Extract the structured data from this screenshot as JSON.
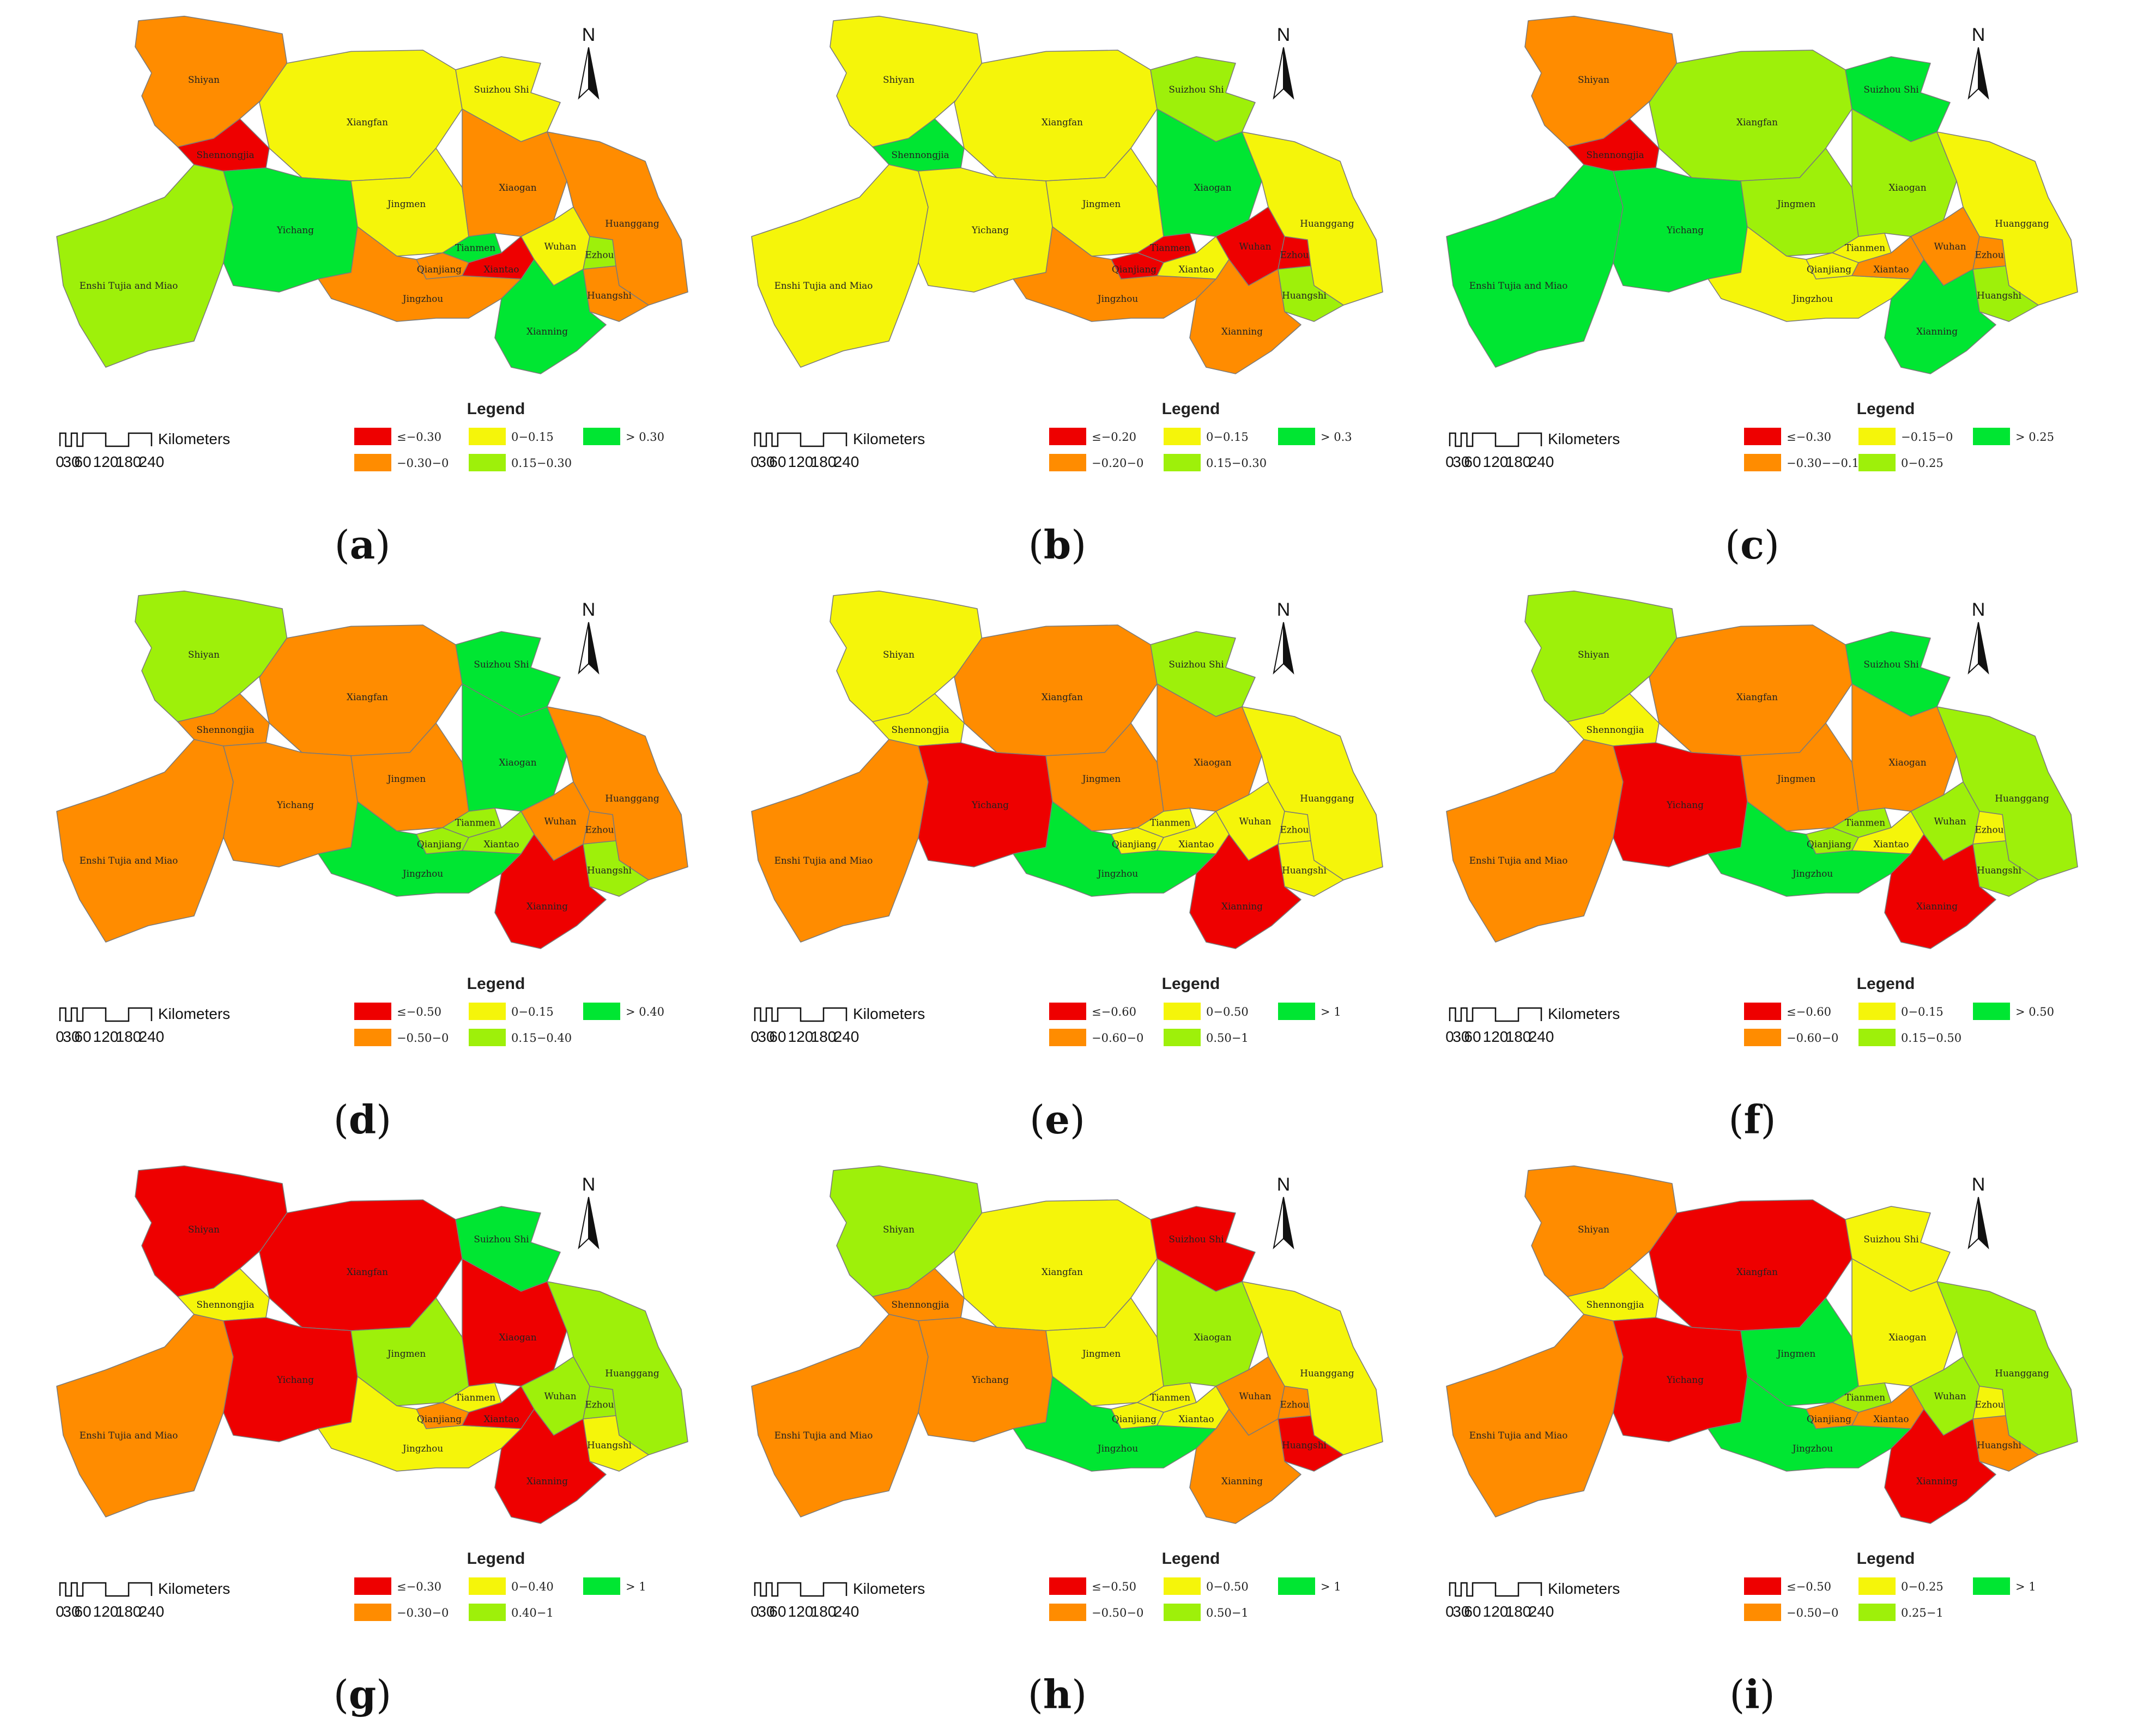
{
  "colors": {
    "red": "#ee0000",
    "orange": "#ff8c00",
    "yellow": "#f5f50a",
    "lime": "#9ef00a",
    "green": "#00e632",
    "border": "#7a7a7a"
  },
  "north_label": "N",
  "scalebar": {
    "unit_label": "Kilometers",
    "ticks": [
      "0",
      "30",
      "60",
      "120",
      "180",
      "240"
    ]
  },
  "legend_title": "Legend",
  "region_labels": {
    "shiyan": "Shiyan",
    "shennongjia": "Shennongjia",
    "xiangfan": "Xiangfan",
    "suizhou": "Suizhou Shi",
    "enshi": "Enshi Tujia and Miao",
    "yichang": "Yichang",
    "jingmen": "Jingmen",
    "xiaogan": "Xiaogan",
    "tianmen": "Tianmen",
    "qianjiang": "Qianjiang",
    "xiantao": "Xiantao",
    "wuhan": "Wuhan",
    "ezhou": "Ezhou",
    "huanggang": "Huanggang",
    "jingzhou": "Jingzhou",
    "huangshi": "Huangshi",
    "xianning": "Xianning"
  },
  "panels": [
    {
      "id": "a",
      "legend": {
        "red": "≤−0.30",
        "orange": "−0.30−0",
        "yellow": "0−0.15",
        "lime": "0.15−0.30",
        "green": "> 0.30"
      },
      "fills": {
        "shiyan": "orange",
        "shennongjia": "red",
        "xiangfan": "yellow",
        "suizhou": "yellow",
        "enshi": "lime",
        "yichang": "green",
        "jingmen": "yellow",
        "xiaogan": "orange",
        "tianmen": "green",
        "qianjiang": "orange",
        "xiantao": "red",
        "wuhan": "yellow",
        "ezhou": "lime",
        "huanggang": "orange",
        "jingzhou": "orange",
        "huangshi": "orange",
        "xianning": "green"
      }
    },
    {
      "id": "b",
      "legend": {
        "red": "≤−0.20",
        "orange": "−0.20−0",
        "yellow": "0−0.15",
        "lime": "0.15−0.30",
        "green": "> 0.3"
      },
      "fills": {
        "shiyan": "yellow",
        "shennongjia": "green",
        "xiangfan": "yellow",
        "suizhou": "lime",
        "enshi": "yellow",
        "yichang": "yellow",
        "jingmen": "yellow",
        "xiaogan": "green",
        "tianmen": "red",
        "qianjiang": "red",
        "xiantao": "yellow",
        "wuhan": "red",
        "ezhou": "red",
        "huanggang": "yellow",
        "jingzhou": "orange",
        "huangshi": "lime",
        "xianning": "orange"
      }
    },
    {
      "id": "c",
      "legend": {
        "red": "≤−0.30",
        "orange": "−0.30−−0.15",
        "yellow": "−0.15−0",
        "lime": "0−0.25",
        "green": "> 0.25"
      },
      "fills": {
        "shiyan": "orange",
        "shennongjia": "red",
        "xiangfan": "lime",
        "suizhou": "green",
        "enshi": "green",
        "yichang": "green",
        "jingmen": "lime",
        "xiaogan": "lime",
        "tianmen": "yellow",
        "qianjiang": "yellow",
        "xiantao": "orange",
        "wuhan": "orange",
        "ezhou": "orange",
        "huanggang": "yellow",
        "jingzhou": "yellow",
        "huangshi": "lime",
        "xianning": "green"
      }
    },
    {
      "id": "d",
      "legend": {
        "red": "≤−0.50",
        "orange": "−0.50−0",
        "yellow": "0−0.15",
        "lime": "0.15−0.40",
        "green": "> 0.40"
      },
      "fills": {
        "shiyan": "lime",
        "shennongjia": "orange",
        "xiangfan": "orange",
        "suizhou": "green",
        "enshi": "orange",
        "yichang": "orange",
        "jingmen": "orange",
        "xiaogan": "green",
        "tianmen": "lime",
        "qianjiang": "lime",
        "xiantao": "lime",
        "wuhan": "orange",
        "ezhou": "orange",
        "huanggang": "orange",
        "jingzhou": "green",
        "huangshi": "lime",
        "xianning": "red"
      }
    },
    {
      "id": "e",
      "legend": {
        "red": "≤−0.60",
        "orange": "−0.60−0",
        "yellow": "0−0.50",
        "lime": "0.50−1",
        "green": "> 1"
      },
      "fills": {
        "shiyan": "yellow",
        "shennongjia": "yellow",
        "xiangfan": "orange",
        "suizhou": "lime",
        "enshi": "orange",
        "yichang": "red",
        "jingmen": "orange",
        "xiaogan": "orange",
        "tianmen": "yellow",
        "qianjiang": "yellow",
        "xiantao": "yellow",
        "wuhan": "yellow",
        "ezhou": "yellow",
        "huanggang": "yellow",
        "jingzhou": "green",
        "huangshi": "yellow",
        "xianning": "red"
      }
    },
    {
      "id": "f",
      "legend": {
        "red": "≤−0.60",
        "orange": "−0.60−0",
        "yellow": "0−0.15",
        "lime": "0.15−0.50",
        "green": "> 0.50"
      },
      "fills": {
        "shiyan": "lime",
        "shennongjia": "yellow",
        "xiangfan": "orange",
        "suizhou": "green",
        "enshi": "orange",
        "yichang": "red",
        "jingmen": "orange",
        "xiaogan": "orange",
        "tianmen": "lime",
        "qianjiang": "lime",
        "xiantao": "yellow",
        "wuhan": "lime",
        "ezhou": "yellow",
        "huanggang": "lime",
        "jingzhou": "green",
        "huangshi": "lime",
        "xianning": "red"
      }
    },
    {
      "id": "g",
      "legend": {
        "red": "≤−0.30",
        "orange": "−0.30−0",
        "yellow": "0−0.40",
        "lime": "0.40−1",
        "green": "> 1"
      },
      "fills": {
        "shiyan": "red",
        "shennongjia": "yellow",
        "xiangfan": "red",
        "suizhou": "green",
        "enshi": "orange",
        "yichang": "red",
        "jingmen": "lime",
        "xiaogan": "red",
        "tianmen": "yellow",
        "qianjiang": "orange",
        "xiantao": "red",
        "wuhan": "lime",
        "ezhou": "lime",
        "huanggang": "lime",
        "jingzhou": "yellow",
        "huangshi": "yellow",
        "xianning": "red"
      }
    },
    {
      "id": "h",
      "legend": {
        "red": "≤−0.50",
        "orange": "−0.50−0",
        "yellow": "0−0.50",
        "lime": "0.50−1",
        "green": "> 1"
      },
      "fills": {
        "shiyan": "lime",
        "shennongjia": "orange",
        "xiangfan": "yellow",
        "suizhou": "red",
        "enshi": "orange",
        "yichang": "orange",
        "jingmen": "yellow",
        "xiaogan": "lime",
        "tianmen": "yellow",
        "qianjiang": "yellow",
        "xiantao": "yellow",
        "wuhan": "orange",
        "ezhou": "orange",
        "huanggang": "yellow",
        "jingzhou": "green",
        "huangshi": "red",
        "xianning": "orange"
      }
    },
    {
      "id": "i",
      "legend": {
        "red": "≤−0.50",
        "orange": "−0.50−0",
        "yellow": "0−0.25",
        "lime": "0.25−1",
        "green": "> 1"
      },
      "fills": {
        "shiyan": "orange",
        "shennongjia": "yellow",
        "xiangfan": "red",
        "suizhou": "yellow",
        "enshi": "orange",
        "yichang": "red",
        "jingmen": "green",
        "xiaogan": "yellow",
        "tianmen": "lime",
        "qianjiang": "orange",
        "xiantao": "orange",
        "wuhan": "lime",
        "ezhou": "yellow",
        "huanggang": "lime",
        "jingzhou": "green",
        "huangshi": "orange",
        "xianning": "red"
      }
    }
  ]
}
